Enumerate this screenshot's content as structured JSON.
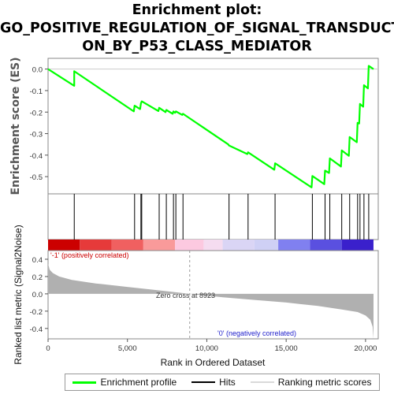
{
  "title_lines": [
    "Enrichment plot:",
    "GO_POSITIVE_REGULATION_OF_SIGNAL_TRANSDUCTI",
    "ON_BY_P53_CLASS_MEDIATOR"
  ],
  "colors": {
    "profile": "#00ff00",
    "hits": "#000000",
    "metric_fill": "#b0b0b0",
    "zero_line": "#9a9a9a",
    "positive_label": "#cc0000",
    "negative_label": "#2222cc"
  },
  "chart_data": [
    {
      "type": "line",
      "panel": "enrichment",
      "ylabel": "Enrichment score (ES)",
      "ylim": [
        -0.58,
        0.05
      ],
      "yticks": [
        0.0,
        -0.1,
        -0.2,
        -0.3,
        -0.4,
        -0.5
      ],
      "ytick_labels": [
        "0.0",
        "-0.1",
        "-0.2",
        "-0.3",
        "-0.4",
        "-0.5"
      ],
      "xlim": [
        0,
        20800
      ],
      "series": [
        {
          "name": "Enrichment profile",
          "x": [
            0,
            1650,
            1650,
            5400,
            5450,
            5800,
            5850,
            5900,
            6950,
            7000,
            7400,
            7450,
            7850,
            7900,
            8000,
            8050,
            8450,
            8500,
            11350,
            11400,
            12550,
            12600,
            14250,
            14300,
            16600,
            16650,
            17400,
            17450,
            17700,
            17750,
            18450,
            18500,
            18950,
            19000,
            19450,
            19500,
            19600,
            19650,
            19850,
            19900,
            20150,
            20200,
            20500
          ],
          "y": [
            0.0,
            -0.078,
            -0.01,
            -0.197,
            -0.17,
            -0.186,
            -0.16,
            -0.15,
            -0.195,
            -0.18,
            -0.2,
            -0.19,
            -0.208,
            -0.197,
            -0.203,
            -0.197,
            -0.213,
            -0.208,
            -0.35,
            -0.355,
            -0.395,
            -0.387,
            -0.468,
            -0.438,
            -0.55,
            -0.497,
            -0.535,
            -0.472,
            -0.483,
            -0.415,
            -0.453,
            -0.378,
            -0.403,
            -0.316,
            -0.34,
            -0.25,
            -0.253,
            -0.162,
            -0.175,
            -0.075,
            -0.09,
            0.015,
            0.0
          ]
        }
      ]
    },
    {
      "type": "hits",
      "panel": "hits",
      "name": "Hits",
      "positions": [
        1650,
        5450,
        5850,
        5900,
        7000,
        7450,
        7900,
        8050,
        8500,
        11400,
        12600,
        14300,
        16650,
        17450,
        17750,
        18500,
        19000,
        19500,
        19650,
        19900,
        20200
      ]
    },
    {
      "type": "heatmap",
      "panel": "rank_colorbar",
      "stops": [
        {
          "x": 0,
          "color": "#cc0000"
        },
        {
          "x": 2000,
          "color": "#e63a3a"
        },
        {
          "x": 4000,
          "color": "#f06060"
        },
        {
          "x": 6000,
          "color": "#f99a9a"
        },
        {
          "x": 8000,
          "color": "#fcc9e0"
        },
        {
          "x": 9800,
          "color": "#f5dcf0"
        },
        {
          "x": 11000,
          "color": "#dad5f5"
        },
        {
          "x": 13000,
          "color": "#cfd0f5"
        },
        {
          "x": 14500,
          "color": "#8080f0"
        },
        {
          "x": 16500,
          "color": "#5a50e0"
        },
        {
          "x": 18500,
          "color": "#3a20cc"
        },
        {
          "x": 20500,
          "color": "#2a10c0"
        }
      ]
    },
    {
      "type": "area",
      "panel": "ranked_metric",
      "name": "Ranking metric scores",
      "ylabel": "Ranked list metric (Signal2Noise)",
      "xlabel": "Rank in Ordered Dataset",
      "ylim": [
        -0.52,
        0.5
      ],
      "yticks": [
        0.4,
        0.2,
        0.0,
        -0.2,
        -0.4
      ],
      "ytick_labels": [
        "0.4",
        "0.2",
        "0.0",
        "-0.2",
        "-0.4"
      ],
      "xlim": [
        0,
        20800
      ],
      "xticks": [
        0,
        5000,
        10000,
        15000,
        20000
      ],
      "xtick_labels": [
        "0",
        "5,000",
        "10,000",
        "15,000",
        "20,000"
      ],
      "x": [
        0,
        100,
        300,
        700,
        1500,
        3000,
        5000,
        7000,
        8923,
        11000,
        13000,
        15000,
        17000,
        18500,
        19500,
        20000,
        20300,
        20450,
        20500
      ],
      "y": [
        0.35,
        0.28,
        0.24,
        0.2,
        0.16,
        0.12,
        0.08,
        0.04,
        0.0,
        -0.04,
        -0.07,
        -0.1,
        -0.14,
        -0.18,
        -0.21,
        -0.25,
        -0.3,
        -0.38,
        -0.52
      ],
      "zero_cross_x": 8923,
      "zero_cross_label": "Zero cross at 8923",
      "positive_label": "'-1' (positively correlated)",
      "negative_label": "'0' (negatively correlated)"
    }
  ],
  "legend": {
    "profile": "Enrichment profile",
    "hits": "Hits",
    "metric": "Ranking metric scores"
  }
}
